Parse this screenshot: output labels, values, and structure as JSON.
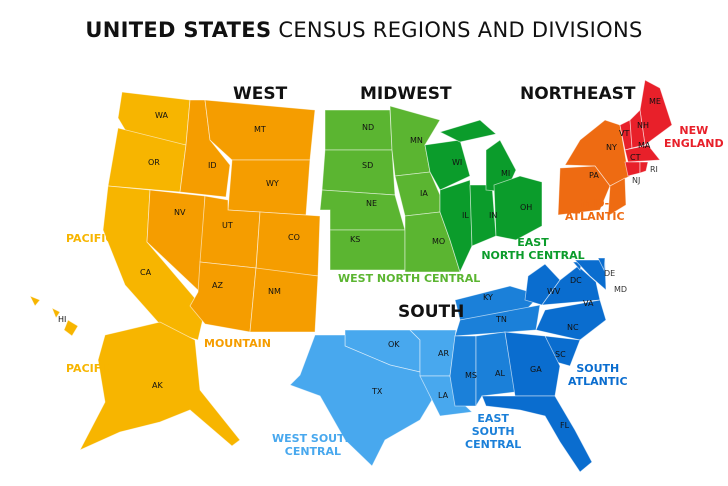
{
  "title": {
    "bold": "UNITED STATES",
    "rest": "CENSUS REGIONS AND DIVISIONS"
  },
  "regions": {
    "west": "WEST",
    "midwest": "MIDWEST",
    "northeast": "NORTHEAST",
    "south": "SOUTH"
  },
  "divisions": {
    "pacific": {
      "label": "PACIFIC",
      "color": "#f7b500"
    },
    "mountain": {
      "label": "MOUNTAIN",
      "color": "#f59d00"
    },
    "wnc": {
      "label": "WEST NORTH CENTRAL",
      "color": "#5bb531"
    },
    "enc": {
      "label_1": "EAST",
      "label_2": "NORTH CENTRAL",
      "color": "#0b9c2b"
    },
    "ne": {
      "label_1": "NEW",
      "label_2": "ENGLAND",
      "color": "#e8202a"
    },
    "ma": {
      "label_1": "MID-",
      "label_2": "ATLANTIC",
      "color": "#ee6b12"
    },
    "wsc": {
      "label_1": "WEST SOUTH",
      "label_2": "CENTRAL",
      "color": "#48a8ee"
    },
    "esc": {
      "label_1": "EAST",
      "label_2": "SOUTH",
      "label_3": "CENTRAL",
      "color": "#1b80d9"
    },
    "sa": {
      "label_1": "SOUTH",
      "label_2": "ATLANTIC",
      "color": "#0a6dcf"
    }
  },
  "pacific_label_2": "PACIFIC",
  "states": [
    {
      "abbr": "WA",
      "division": "pacific"
    },
    {
      "abbr": "OR",
      "division": "pacific"
    },
    {
      "abbr": "CA",
      "division": "pacific"
    },
    {
      "abbr": "AK",
      "division": "pacific"
    },
    {
      "abbr": "HI",
      "division": "pacific"
    },
    {
      "abbr": "ID",
      "division": "mountain"
    },
    {
      "abbr": "MT",
      "division": "mountain"
    },
    {
      "abbr": "WY",
      "division": "mountain"
    },
    {
      "abbr": "NV",
      "division": "mountain"
    },
    {
      "abbr": "UT",
      "division": "mountain"
    },
    {
      "abbr": "CO",
      "division": "mountain"
    },
    {
      "abbr": "AZ",
      "division": "mountain"
    },
    {
      "abbr": "NM",
      "division": "mountain"
    },
    {
      "abbr": "ND",
      "division": "wnc"
    },
    {
      "abbr": "SD",
      "division": "wnc"
    },
    {
      "abbr": "NE",
      "division": "wnc"
    },
    {
      "abbr": "KS",
      "division": "wnc"
    },
    {
      "abbr": "MN",
      "division": "wnc"
    },
    {
      "abbr": "IA",
      "division": "wnc"
    },
    {
      "abbr": "MO",
      "division": "wnc"
    },
    {
      "abbr": "WI",
      "division": "enc"
    },
    {
      "abbr": "IL",
      "division": "enc"
    },
    {
      "abbr": "IN",
      "division": "enc"
    },
    {
      "abbr": "MI",
      "division": "enc"
    },
    {
      "abbr": "OH",
      "division": "enc"
    },
    {
      "abbr": "NY",
      "division": "ma"
    },
    {
      "abbr": "PA",
      "division": "ma"
    },
    {
      "abbr": "NJ",
      "division": "ma"
    },
    {
      "abbr": "ME",
      "division": "ne"
    },
    {
      "abbr": "VT",
      "division": "ne"
    },
    {
      "abbr": "NH",
      "division": "ne"
    },
    {
      "abbr": "MA",
      "division": "ne"
    },
    {
      "abbr": "CT",
      "division": "ne"
    },
    {
      "abbr": "RI",
      "division": "ne"
    },
    {
      "abbr": "OK",
      "division": "wsc"
    },
    {
      "abbr": "TX",
      "division": "wsc"
    },
    {
      "abbr": "AR",
      "division": "wsc"
    },
    {
      "abbr": "LA",
      "division": "wsc"
    },
    {
      "abbr": "KY",
      "division": "esc"
    },
    {
      "abbr": "TN",
      "division": "esc"
    },
    {
      "abbr": "MS",
      "division": "esc"
    },
    {
      "abbr": "AL",
      "division": "esc"
    },
    {
      "abbr": "WV",
      "division": "sa"
    },
    {
      "abbr": "VA",
      "division": "sa"
    },
    {
      "abbr": "DC",
      "division": "sa"
    },
    {
      "abbr": "MD",
      "division": "sa"
    },
    {
      "abbr": "DE",
      "division": "sa"
    },
    {
      "abbr": "NC",
      "division": "sa"
    },
    {
      "abbr": "SC",
      "division": "sa"
    },
    {
      "abbr": "GA",
      "division": "sa"
    },
    {
      "abbr": "FL",
      "division": "sa"
    }
  ]
}
